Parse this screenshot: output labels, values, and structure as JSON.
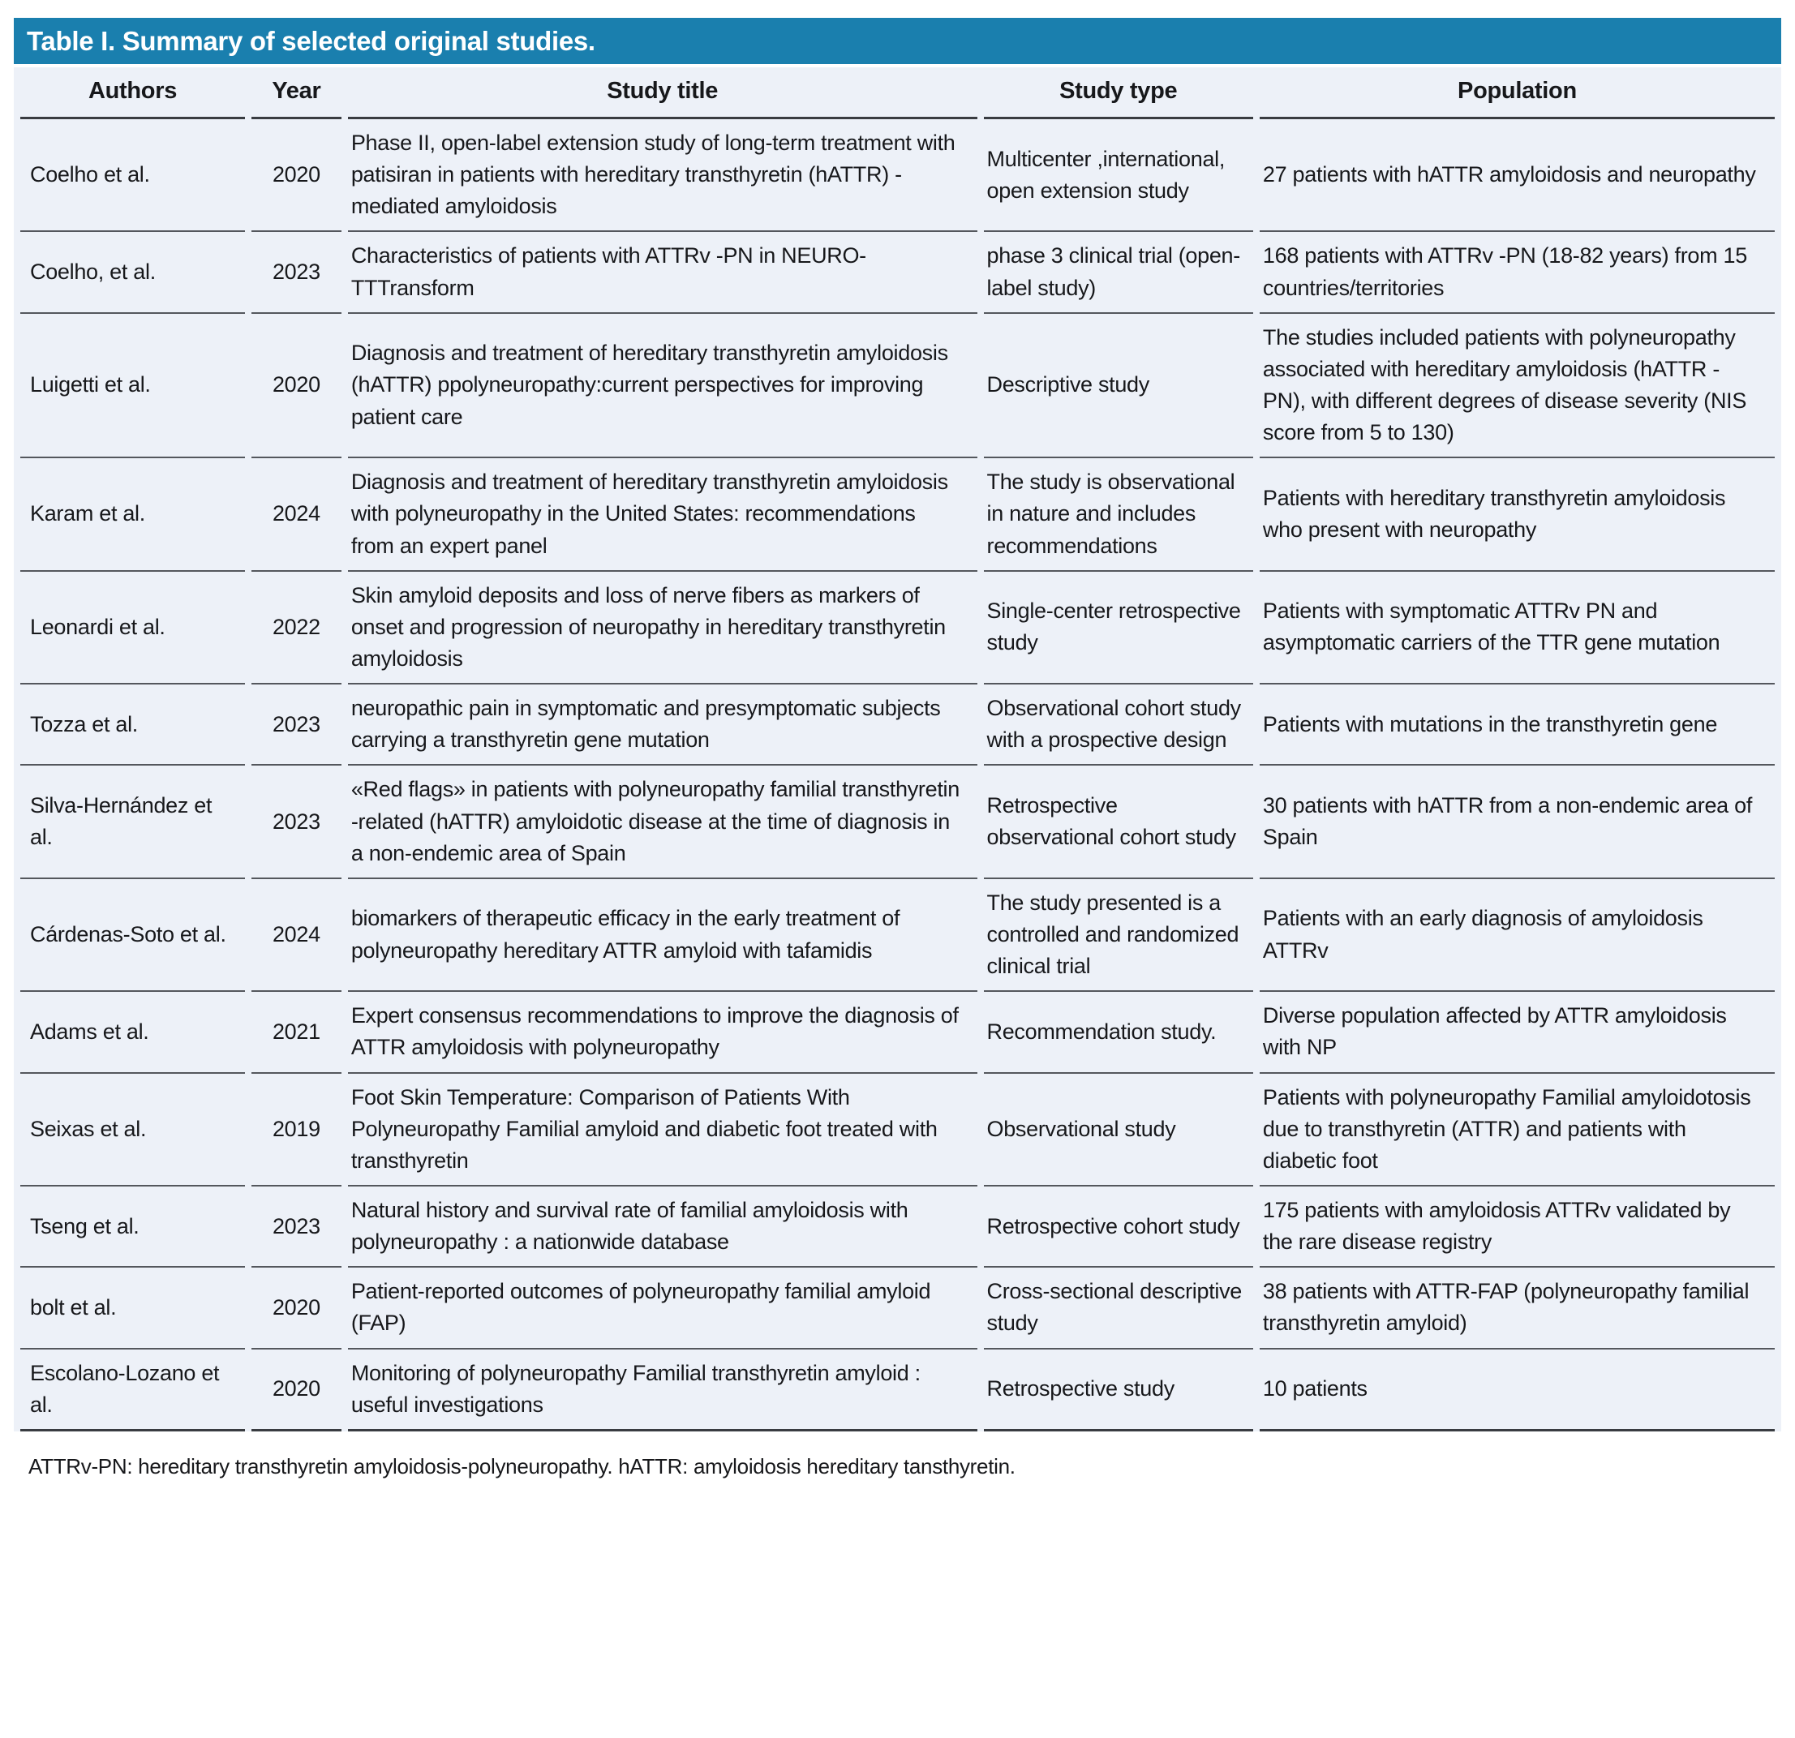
{
  "colors": {
    "title_bar_bg": "#1a7fae",
    "title_text": "#ffffff",
    "table_bg": "#edf1f8",
    "rule_line": "#54575d",
    "heavy_rule_line": "#393c41",
    "body_text": "#17181b"
  },
  "table": {
    "title": "Table I. Summary of selected original studies.",
    "columns": [
      "Authors",
      "Year",
      "Study title",
      "Study type",
      "Population"
    ],
    "rows": [
      {
        "authors": "Coelho et al.",
        "year": "2020",
        "title": "Phase II, open-label extension study of long-term treatment with patisiran in patients with hereditary transthyretin (hATTR) -mediated amyloidosis",
        "type": "Multicenter ,international, open extension study",
        "population": "27 patients with hATTR amyloidosis and neuropathy"
      },
      {
        "authors": "Coelho, et al.",
        "year": "2023",
        "title": "Characteristics of patients with ATTRv -PN in NEURO- TTTransform",
        "type": "phase 3 clinical trial (open-label study)",
        "population": "168 patients with ATTRv -PN (18-82 years) from 15 countries/territories"
      },
      {
        "authors": "Luigetti et al.",
        "year": "2020",
        "title": "Diagnosis and treatment of hereditary transthyretin amyloidosis (hATTR) ppolyneuropathy:current perspectives for improving patient care",
        "type": "Descriptive study",
        "population": "The studies included patients with polyneuropathy associated with hereditary amyloidosis (hATTR - PN), with different degrees of disease severity (NIS score from 5 to 130)"
      },
      {
        "authors": "Karam et al.",
        "year": "2024",
        "title": "Diagnosis and treatment of hereditary transthyretin amyloidosis with polyneuropathy in the United States: recommendations from an expert panel",
        "type": "The study is observational in nature and includes recommendations",
        "population": "Patients with hereditary transthyretin amyloidosis who present with neuropathy"
      },
      {
        "authors": "Leonardi et al.",
        "year": "2022",
        "title": "Skin amyloid deposits and loss of nerve fibers as markers of onset and progression of neuropathy in hereditary transthyretin amyloidosis",
        "type": "Single-center retrospective study",
        "population": "Patients with symptomatic ATTRv PN and asymptomatic carriers of the TTR gene mutation"
      },
      {
        "authors": "Tozza et al.",
        "year": "2023",
        "title": "neuropathic pain in symptomatic and presymptomatic subjects carrying a transthyretin gene mutation",
        "type": "Observational cohort study with a prospective design",
        "population": "Patients with mutations in the transthyretin gene"
      },
      {
        "authors": "Silva-Hernández et al.",
        "year": "2023",
        "title": "«Red flags» in patients with polyneuropathy familial transthyretin -related (hATTR) amyloidotic disease at the time of diagnosis in a non-endemic area of Spain",
        "type": "Retrospective observational cohort study",
        "population": "30 patients with hATTR from a non-endemic area of Spain"
      },
      {
        "authors": "Cárdenas-Soto et al.",
        "year": "2024",
        "title": "biomarkers of therapeutic efficacy in the early treatment of polyneuropathy hereditary ATTR amyloid with tafamidis",
        "type": "The study presented is a controlled and randomized clinical trial",
        "population": "Patients with an early diagnosis of amyloidosis ATTRv"
      },
      {
        "authors": "Adams et al.",
        "year": "2021",
        "title": "Expert consensus recommendations to improve the diagnosis of ATTR amyloidosis with polyneuropathy",
        "type": "Recommendation study.",
        "population": "Diverse population affected by ATTR amyloidosis with NP"
      },
      {
        "authors": "Seixas et al.",
        "year": "2019",
        "title": "Foot Skin Temperature: Comparison of Patients With Polyneuropathy Familial amyloid and diabetic foot treated with transthyretin",
        "type": "Observational study",
        "population": "Patients with polyneuropathy Familial amyloidotosis due to transthyretin (ATTR) and patients with diabetic foot"
      },
      {
        "authors": "Tseng et al.",
        "year": "2023",
        "title": "Natural history and survival rate of familial amyloidosis with polyneuropathy : a nationwide database",
        "type": "Retrospective cohort study",
        "population": "175 patients with amyloidosis ATTRv validated by the rare disease registry"
      },
      {
        "authors": "bolt et al.",
        "year": "2020",
        "title": "Patient-reported outcomes of polyneuropathy familial amyloid (FAP)",
        "type": "Cross-sectional descriptive study",
        "population": "38 patients with ATTR-FAP (polyneuropathy familial transthyretin amyloid)"
      },
      {
        "authors": "Escolano-Lozano et al.",
        "year": "2020",
        "title": "Monitoring of polyneuropathy Familial transthyretin amyloid : useful investigations",
        "type": "Retrospective study",
        "population": "10 patients"
      }
    ],
    "footnote": "ATTRv-PN: hereditary transthyretin amyloidosis-polyneuropathy. hATTR: amyloidosis hereditary tansthyretin."
  }
}
